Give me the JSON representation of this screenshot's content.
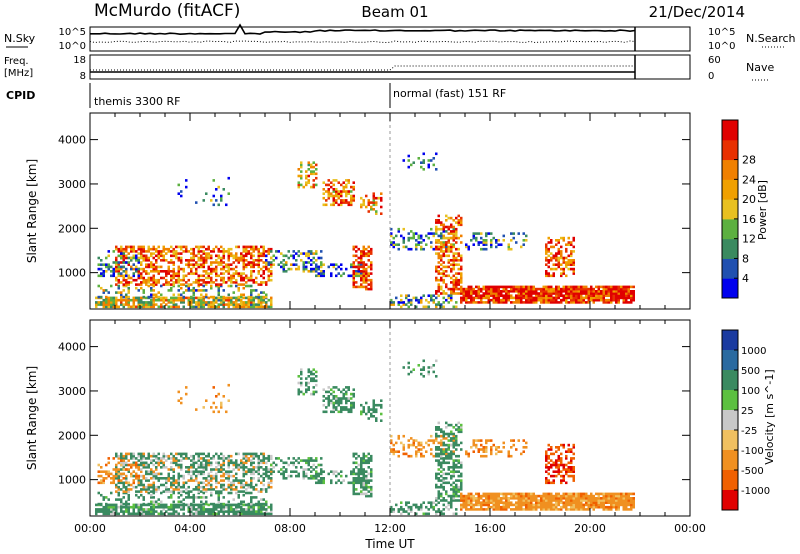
{
  "header": {
    "title": "McMurdo (fitACF)",
    "beam": "Beam 01",
    "date": "21/Dec/2014"
  },
  "status_panels": {
    "nsky_label": "N.Sky",
    "nsky_ticks": [
      "10^5",
      "10^0"
    ],
    "nsearch_label": "N.Search",
    "nsearch_ticks": [
      "10^5",
      "10^0"
    ],
    "freq_label_1": "Freq.",
    "freq_label_2": "[MHz]",
    "freq_ticks": [
      "18",
      "8"
    ],
    "nave_label": "Nave",
    "nave_ticks": [
      "60",
      "0"
    ],
    "cpid_label": "CPID",
    "cpid_segments": [
      {
        "text": "themis 3300 RF",
        "start_hour": 0
      },
      {
        "text": "normal (fast) 151 RF",
        "start_hour": 12
      }
    ]
  },
  "chart_data": [
    {
      "type": "heatmap",
      "ylabel": "Slant Range [km]",
      "xlabel": "Time UT",
      "xlim": [
        0,
        24
      ],
      "ylim": [
        180,
        4600
      ],
      "x_ticks": [
        "00:00",
        "04:00",
        "08:00",
        "12:00",
        "16:00",
        "20:00",
        "00:00"
      ],
      "y_ticks": [
        1000,
        2000,
        3000,
        4000
      ],
      "colorbar_label": "Power [dB]",
      "colorbar_ticks": [
        "4",
        "8",
        "12",
        "16",
        "20",
        "24",
        "28"
      ],
      "colorbar_colors": [
        "#0000ee",
        "#2050b0",
        "#3a8a60",
        "#5cb040",
        "#e8c020",
        "#f0a000",
        "#f08000",
        "#e83000",
        "#e00000"
      ],
      "data_end_hour": 21.8
    },
    {
      "type": "heatmap",
      "ylabel": "Slant Range [km]",
      "xlabel": "Time UT",
      "xlim": [
        0,
        24
      ],
      "ylim": [
        180,
        4600
      ],
      "x_ticks": [
        "00:00",
        "04:00",
        "08:00",
        "12:00",
        "16:00",
        "20:00",
        "00:00"
      ],
      "y_ticks": [
        1000,
        2000,
        3000,
        4000
      ],
      "colorbar_label": "Velocity [m s^-1]",
      "colorbar_ticks": [
        "1000",
        "500",
        "100",
        "25",
        "-25",
        "-100",
        "-500",
        "-1000"
      ],
      "colorbar_colors": [
        "#1a3aa0",
        "#2a6aa0",
        "#3a8a60",
        "#5cc040",
        "#c8c8c8",
        "#f0c060",
        "#f09020",
        "#f06000",
        "#e00000"
      ],
      "data_end_hour": 21.8
    }
  ],
  "colors": {
    "power_low": "#0000ee",
    "power_mid": "#5cb040",
    "power_high": "#e00000",
    "vel_neg": "#f09020",
    "vel_pos": "#3a8a60",
    "ground": "#c8c8c8"
  }
}
